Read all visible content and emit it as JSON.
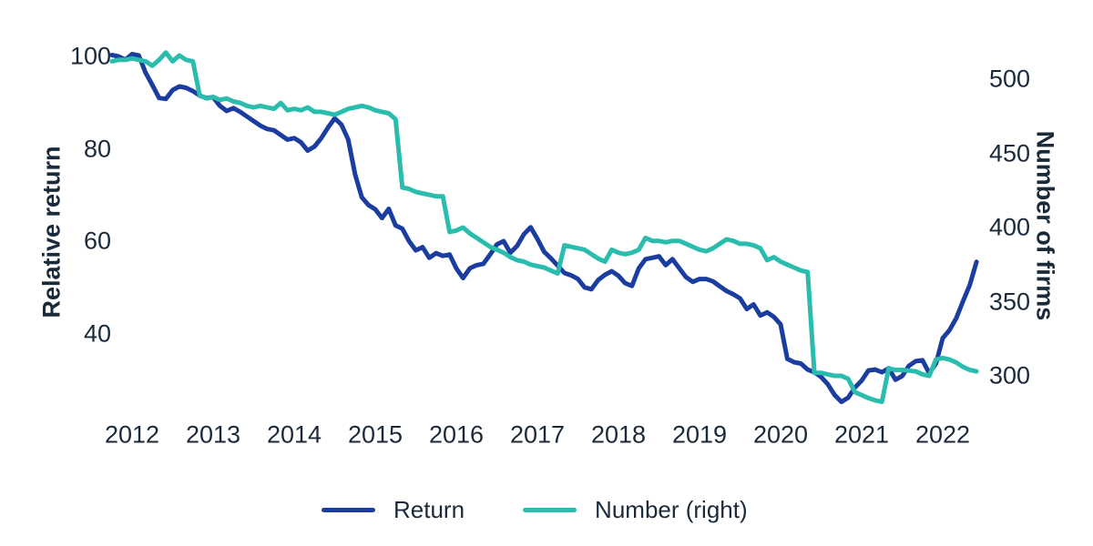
{
  "colors": {
    "return_line": "#1c3da0",
    "number_line": "#2abcac",
    "text": "#1b2a3a",
    "background": "#ffffff"
  },
  "chart_data": {
    "type": "line",
    "title": "",
    "grid": false,
    "legend_position": "bottom",
    "x_start": "2011-10",
    "x_step": "1 month",
    "x_tick_years": [
      2012,
      2013,
      2014,
      2015,
      2016,
      2017,
      2018,
      2019,
      2020,
      2021,
      2022
    ],
    "left_axis": {
      "label": "Relative return",
      "ticks": [
        40,
        60,
        80,
        100
      ]
    },
    "right_axis": {
      "label": "Number of firms",
      "ticks": [
        300,
        350,
        400,
        450,
        500
      ]
    },
    "series": [
      {
        "name": "Return",
        "axis": "left",
        "color": "#1c3da0",
        "values": [
          100.3,
          100,
          99.3,
          100.5,
          100.2,
          96.5,
          93.8,
          91,
          90.8,
          92.7,
          93.5,
          93.2,
          92.5,
          91.5,
          91,
          91.2,
          89.3,
          88.2,
          88.8,
          88,
          87,
          86,
          85,
          84.3,
          84,
          83,
          82,
          82.3,
          81.4,
          79.6,
          80.5,
          82.3,
          84.6,
          86.6,
          85.2,
          82,
          74.5,
          69.5,
          67.8,
          66.9,
          65,
          67,
          63.4,
          62.7,
          60,
          58,
          58.7,
          56.4,
          57.4,
          56.8,
          57.1,
          54.1,
          52,
          54.1,
          54.8,
          55.1,
          57.1,
          59.3,
          60,
          57.5,
          59,
          61.5,
          63,
          60.5,
          57.7,
          56.3,
          54.7,
          53.1,
          52.6,
          51.8,
          50,
          49.6,
          51.6,
          52.7,
          53.5,
          52.5,
          50.9,
          50.3,
          54.1,
          56.1,
          56.4,
          56.7,
          54.8,
          56.1,
          54.1,
          52.2,
          51.2,
          51.8,
          51.8,
          51.3,
          50.2,
          49.2,
          48.5,
          47.6,
          45.3,
          46.3,
          43.9,
          44.6,
          43.6,
          42,
          34.5,
          33.8,
          33.5,
          32.2,
          31.6,
          30.6,
          29,
          26.7,
          25.2,
          26.1,
          28.3,
          29.8,
          32,
          32.2,
          31.6,
          32.5,
          30,
          30.8,
          33,
          34,
          34.2,
          31.4,
          33.5,
          39,
          40.7,
          43.3,
          47,
          50.5,
          55.5
        ]
      },
      {
        "name": "Number (right)",
        "axis": "right",
        "color": "#2abcac",
        "values": [
          512,
          513,
          513,
          514,
          513,
          512,
          509,
          513,
          518,
          512,
          516,
          513,
          512,
          489,
          487,
          488,
          486,
          487,
          485,
          484,
          482,
          481,
          482,
          481,
          480,
          484,
          479,
          480,
          479,
          481,
          478,
          478,
          477,
          476,
          478,
          480,
          481,
          482,
          481,
          479,
          478,
          477,
          473,
          427,
          426,
          424,
          423,
          422,
          421,
          421,
          397,
          398,
          400,
          396,
          393,
          390,
          387,
          385,
          383,
          380,
          378,
          377,
          375,
          374,
          373,
          371,
          369,
          388,
          387,
          386,
          385,
          382,
          379,
          377,
          385,
          383,
          382,
          383,
          385,
          393,
          391,
          391,
          390,
          391,
          391,
          389,
          387,
          385,
          384,
          386,
          389,
          392,
          391,
          389,
          389,
          388,
          386,
          378,
          380,
          377,
          375,
          373,
          371,
          370,
          302,
          302,
          301,
          300,
          300,
          298,
          289,
          287,
          285,
          283.5,
          282.5,
          305,
          304,
          304,
          303.5,
          303,
          301,
          300,
          311,
          312,
          311,
          309,
          306,
          304,
          303
        ]
      }
    ]
  }
}
